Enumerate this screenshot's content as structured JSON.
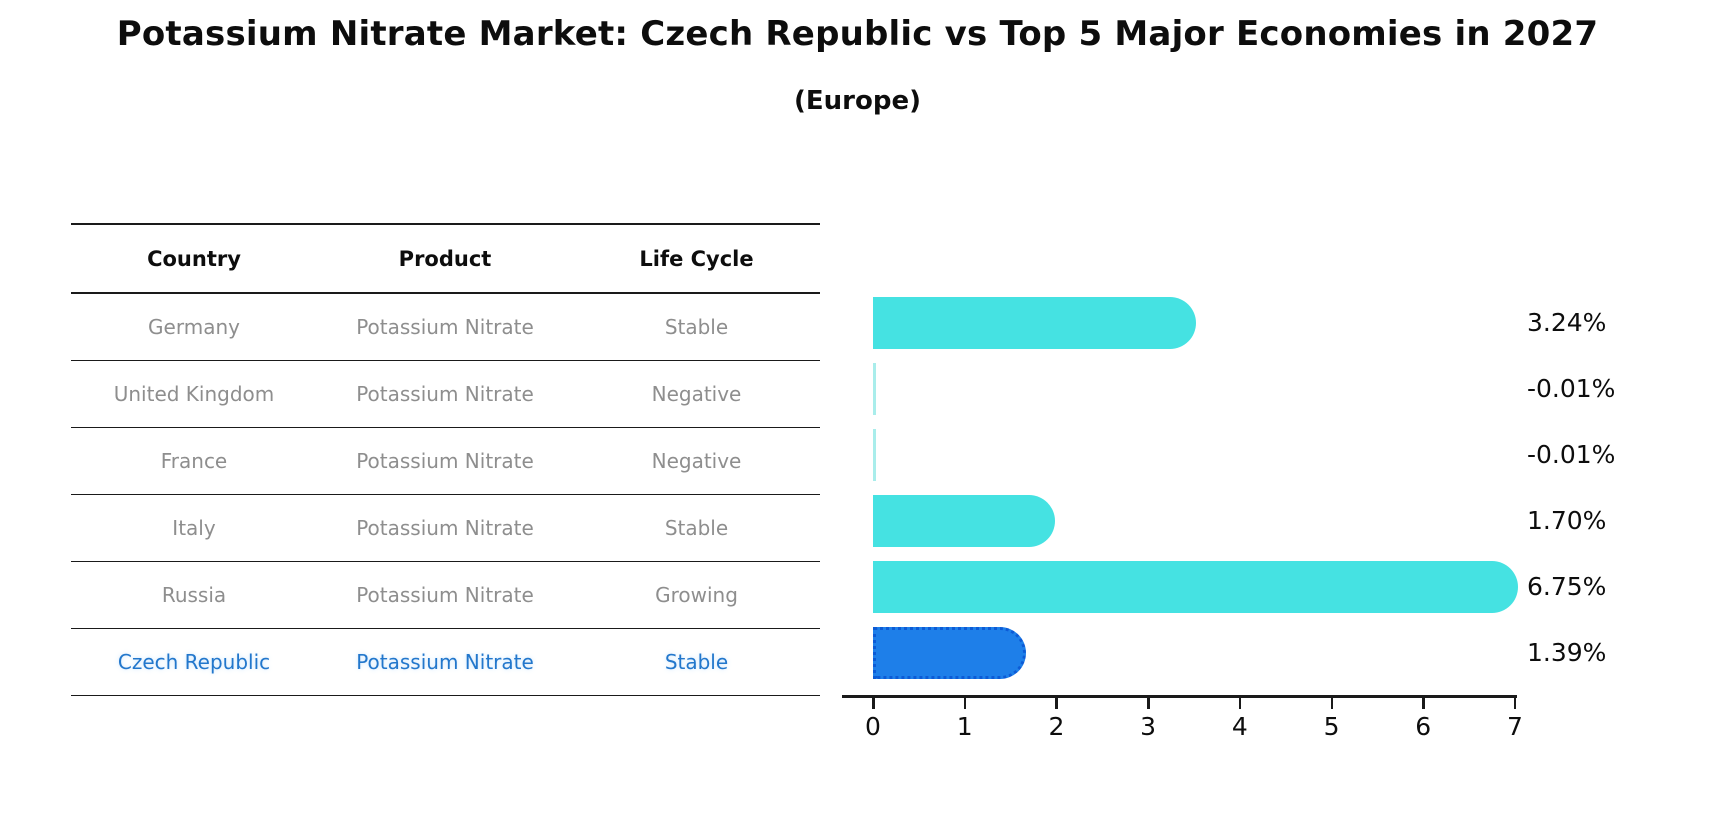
{
  "title": "Potassium Nitrate Market: Czech Republic vs Top 5 Major Economies in 2027",
  "subtitle": "(Europe)",
  "table": {
    "headers": [
      "Country",
      "Product",
      "Life Cycle"
    ],
    "rows": [
      {
        "country": "Germany",
        "product": "Potassium Nitrate",
        "life_cycle": "Stable",
        "highlighted": false
      },
      {
        "country": "United Kingdom",
        "product": "Potassium Nitrate",
        "life_cycle": "Negative",
        "highlighted": false
      },
      {
        "country": "France",
        "product": "Potassium Nitrate",
        "life_cycle": "Negative",
        "highlighted": false
      },
      {
        "country": "Italy",
        "product": "Potassium Nitrate",
        "life_cycle": "Stable",
        "highlighted": false
      },
      {
        "country": "Russia",
        "product": "Potassium Nitrate",
        "life_cycle": "Growing",
        "highlighted": false
      },
      {
        "country": "Czech Republic",
        "product": "Potassium Nitrate",
        "life_cycle": "Stable",
        "highlighted": true
      }
    ]
  },
  "chart_data": {
    "type": "bar",
    "orientation": "horizontal",
    "title": "Potassium Nitrate Market: Czech Republic vs Top 5 Major Economies in 2027",
    "subtitle": "(Europe)",
    "categories": [
      "Germany",
      "United Kingdom",
      "France",
      "Italy",
      "Russia",
      "Czech Republic"
    ],
    "values": [
      3.24,
      -0.01,
      -0.01,
      1.7,
      6.75,
      1.39
    ],
    "value_labels": [
      "3.24%",
      "-0.01%",
      "-0.01%",
      "1.70%",
      "6.75%",
      "1.39%"
    ],
    "unit": "%",
    "xlim": [
      0,
      7
    ],
    "x_ticks": [
      "0",
      "1",
      "2",
      "3",
      "4",
      "5",
      "6",
      "7"
    ],
    "grid": false,
    "legend": "none",
    "bar_color": "#45e2e2",
    "highlight_index": 5,
    "highlight_bar_color": "#1e7fe9",
    "highlight_border_color": "#0c5bd6",
    "highlight_text_color": "#2277cc",
    "row_text_color": "#8e8e8e",
    "axis_color": "#1a1a1a"
  }
}
